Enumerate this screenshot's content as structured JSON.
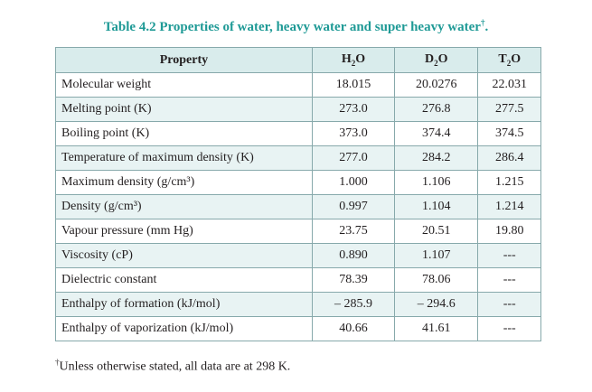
{
  "caption": {
    "text": "Table 4.2 Properties of water, heavy water and super heavy water",
    "mark": "†",
    "end": "."
  },
  "table": {
    "headers": [
      {
        "text": "Property"
      },
      {
        "base": "H",
        "sub": "2",
        "tail": "O"
      },
      {
        "base": "D",
        "sub": "2",
        "tail": "O"
      },
      {
        "base": "T",
        "sub": "2",
        "tail": "O"
      }
    ],
    "rows": [
      {
        "property": "Molecular weight",
        "values": [
          "18.015",
          "20.0276",
          "22.031"
        ]
      },
      {
        "property": "Melting point (K)",
        "values": [
          "273.0",
          "276.8",
          "277.5"
        ]
      },
      {
        "property": "Boiling point (K)",
        "values": [
          "373.0",
          "374.4",
          "374.5"
        ]
      },
      {
        "property": "Temperature of maximum density (K)",
        "values": [
          "277.0",
          "284.2",
          "286.4"
        ]
      },
      {
        "property": "Maximum density (g/cm³)",
        "values": [
          "1.000",
          "1.106",
          "1.215"
        ]
      },
      {
        "property": "Density (g/cm³)",
        "values": [
          "0.997",
          "1.104",
          "1.214"
        ]
      },
      {
        "property": "Vapour pressure (mm Hg)",
        "values": [
          "23.75",
          "20.51",
          "19.80"
        ]
      },
      {
        "property": "Viscosity (cP)",
        "values": [
          "0.890",
          "1.107",
          "---"
        ]
      },
      {
        "property": "Dielectric constant",
        "values": [
          "78.39",
          "78.06",
          "---"
        ]
      },
      {
        "property": "Enthalpy of formation (kJ/mol)",
        "values": [
          "– 285.9",
          "– 294.6",
          "---"
        ]
      },
      {
        "property": "Enthalpy of vaporization (kJ/mol)",
        "values": [
          "40.66",
          "41.61",
          "---"
        ]
      }
    ]
  },
  "footnote": {
    "mark": "†",
    "text": "Unless otherwise stated, all data are at 298 K."
  }
}
